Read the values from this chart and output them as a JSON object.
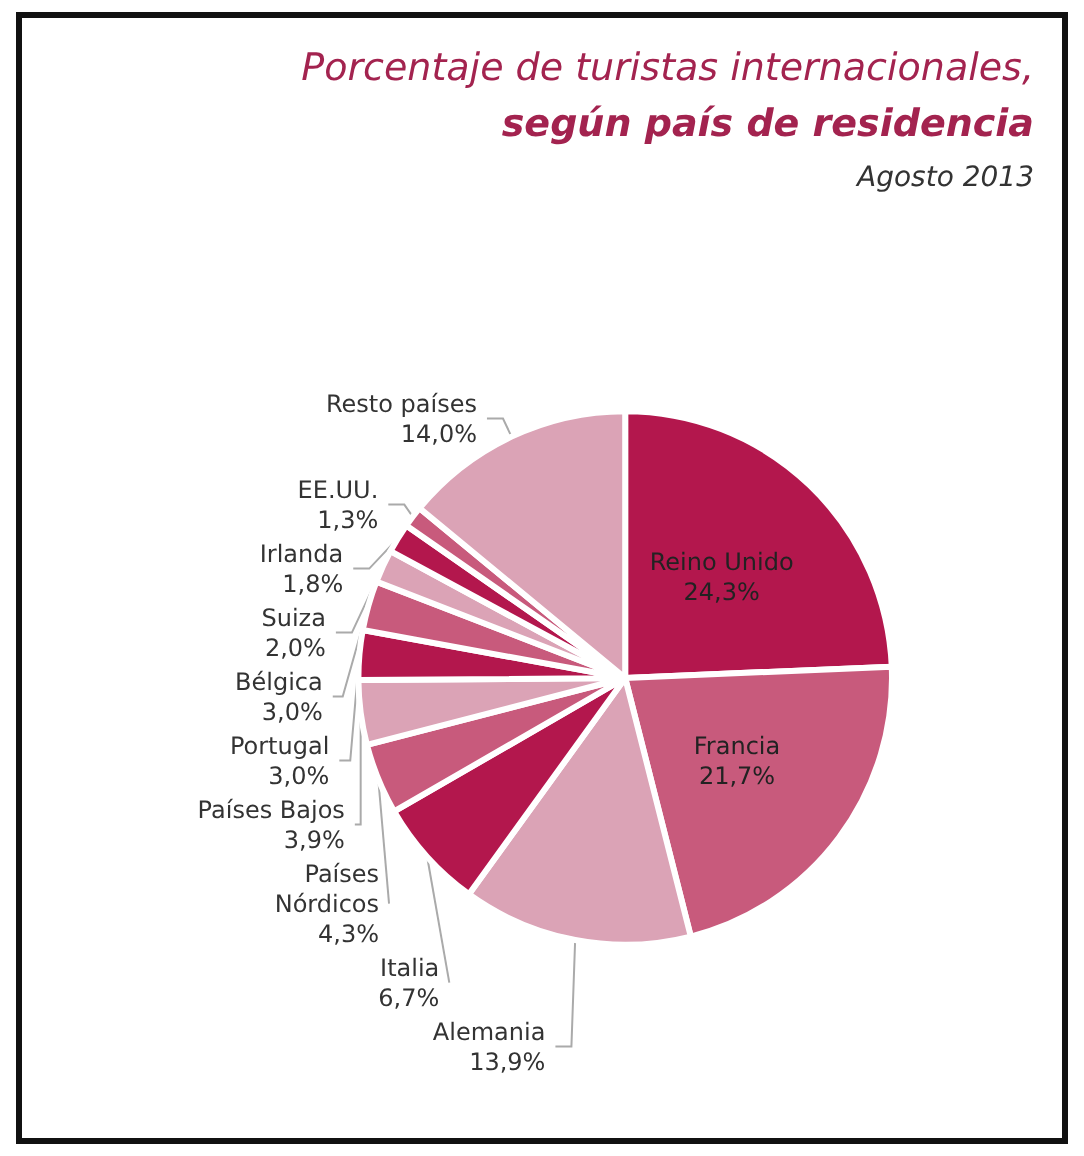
{
  "chart_data": {
    "type": "pie",
    "title": "Porcentaje de turistas internacionales,",
    "subtitle": "según país de residencia",
    "annotations": [
      "Agosto 2013"
    ],
    "categories": [
      "Reino Unido",
      "Francia",
      "Alemania",
      "Italia",
      "Países\nNórdicos",
      "Países Bajos",
      "Portugal",
      "Bélgica",
      "Suiza",
      "Irlanda",
      "EE.UU.",
      "Resto países"
    ],
    "values": [
      24.3,
      21.7,
      13.9,
      6.7,
      4.3,
      3.9,
      3.0,
      3.0,
      2.0,
      1.8,
      1.3,
      14.0
    ],
    "value_labels": [
      "24,3%",
      "21,7%",
      "13,9%",
      "6,7%",
      "4,3%",
      "3,9%",
      "3,0%",
      "3,0%",
      "2,0%",
      "1,8%",
      "1,3%",
      "14,0%"
    ],
    "colors": [
      "#b3174d",
      "#c85a7c",
      "#dba3b6",
      "#b3174d",
      "#c85a7c",
      "#dba3b6",
      "#b3174d",
      "#c85a7c",
      "#dba3b6",
      "#b3174d",
      "#c85a7c",
      "#dba3b6"
    ],
    "legend": false
  }
}
